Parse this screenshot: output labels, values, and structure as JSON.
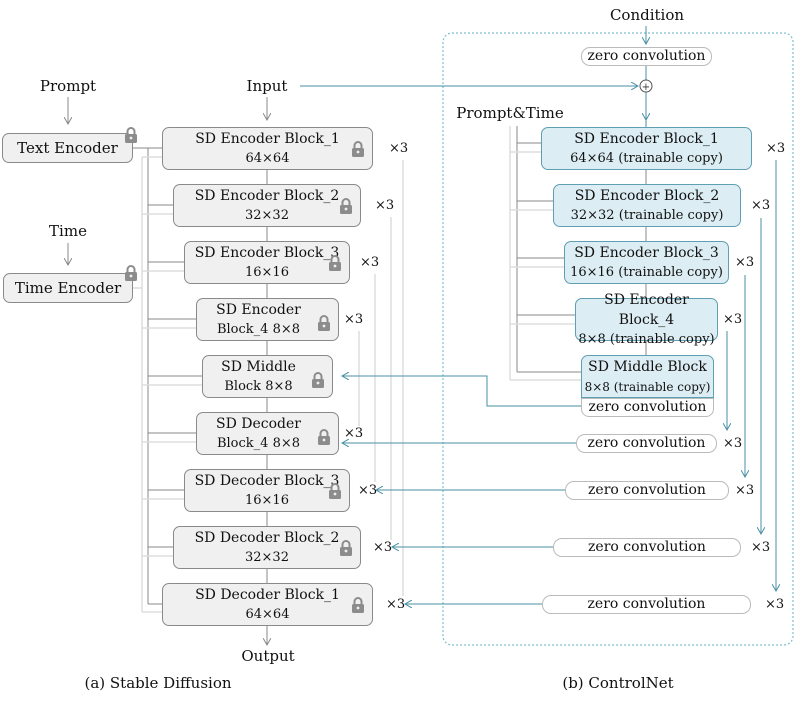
{
  "labels": {
    "prompt": "Prompt",
    "time": "Time",
    "input": "Input",
    "output": "Output",
    "condition": "Condition",
    "prompt_time": "Prompt&Time",
    "caption_a": "(a) Stable Diffusion",
    "caption_b": "(b) ControlNet",
    "times3": "×3"
  },
  "sd": {
    "text_encoder": "Text Encoder",
    "time_encoder": "Time Encoder",
    "blocks": [
      {
        "l1": "SD Encoder Block_1",
        "l2": "64×64"
      },
      {
        "l1": "SD Encoder Block_2",
        "l2": "32×32"
      },
      {
        "l1": "SD Encoder Block_3",
        "l2": "16×16"
      },
      {
        "l1": "SD Encoder",
        "l2": "Block_4 8×8"
      },
      {
        "l1": "SD Middle",
        "l2": "Block 8×8"
      },
      {
        "l1": "SD Decoder",
        "l2": "Block_4 8×8"
      },
      {
        "l1": "SD Decoder Block_3",
        "l2": "16×16"
      },
      {
        "l1": "SD Decoder Block_2",
        "l2": "32×32"
      },
      {
        "l1": "SD Decoder Block_1",
        "l2": "64×64"
      }
    ]
  },
  "controlnet": {
    "zero_conv": "zero convolution",
    "plus": "+",
    "blocks": [
      {
        "l1": "SD Encoder Block_1",
        "l2": "64×64 (trainable copy)"
      },
      {
        "l1": "SD Encoder Block_2",
        "l2": "32×32 (trainable copy)"
      },
      {
        "l1": "SD Encoder Block_3",
        "l2": "16×16 (trainable copy)"
      },
      {
        "l1": "SD Encoder Block_4",
        "l2": "8×8 (trainable copy)"
      },
      {
        "l1": "SD Middle Block",
        "l2": "8×8 (trainable copy)"
      }
    ]
  },
  "colors": {
    "teal": "#4a90a4",
    "frozen_fill": "#f0f0f0",
    "trainable_fill": "#dcedf3",
    "lock": "#8c8c8c"
  }
}
